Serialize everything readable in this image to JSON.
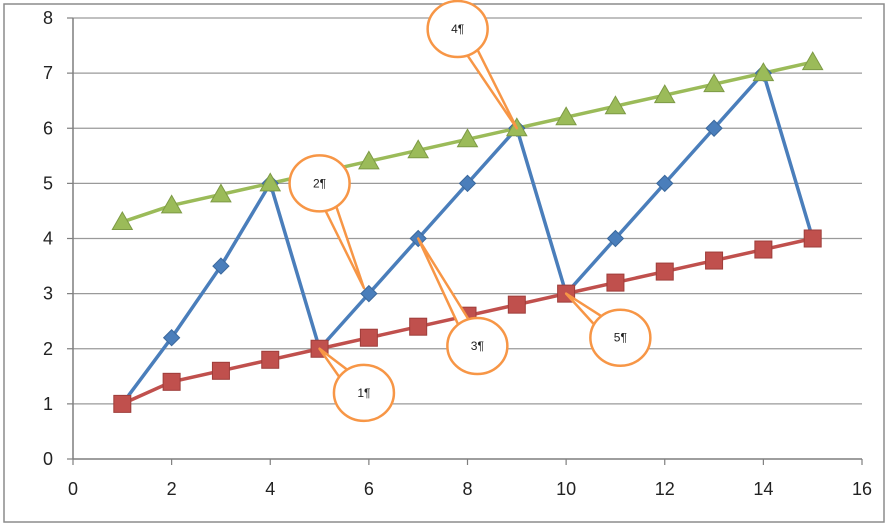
{
  "chart_data": {
    "type": "line",
    "title": "",
    "xlabel": "",
    "ylabel": "",
    "xlim": [
      0,
      16
    ],
    "ylim": [
      0,
      8
    ],
    "x_ticks": [
      0,
      2,
      4,
      6,
      8,
      10,
      12,
      14,
      16
    ],
    "y_ticks": [
      0,
      1,
      2,
      3,
      4,
      5,
      6,
      7,
      8
    ],
    "grid": "horizontal",
    "legend": "none",
    "series": [
      {
        "color": "#4a7ebb",
        "marker": "diamond",
        "x": [
          1,
          2,
          3,
          4,
          5,
          6,
          7,
          8,
          9,
          10,
          11,
          12,
          13,
          14,
          15
        ],
        "y": [
          1,
          2.2,
          3.5,
          5,
          2,
          3,
          4,
          5,
          6,
          3,
          4,
          5,
          6,
          7,
          4
        ]
      },
      {
        "color": "#c0504d",
        "marker": "square",
        "x": [
          1,
          2,
          3,
          4,
          5,
          6,
          7,
          8,
          9,
          10,
          11,
          12,
          13,
          14,
          15
        ],
        "y": [
          1,
          1.4,
          1.6,
          1.8,
          2,
          2.2,
          2.4,
          2.6,
          2.8,
          3,
          3.2,
          3.4,
          3.6,
          3.8,
          4
        ]
      },
      {
        "color": "#9bbb59",
        "marker": "triangle",
        "x": [
          1,
          2,
          3,
          4,
          5,
          6,
          7,
          8,
          9,
          10,
          11,
          12,
          13,
          14,
          15
        ],
        "y": [
          4.3,
          4.6,
          4.8,
          5,
          5.2,
          5.4,
          5.6,
          5.8,
          6,
          6.2,
          6.4,
          6.6,
          6.8,
          7,
          7.2
        ]
      }
    ],
    "annotations": [
      {
        "text": "1¶",
        "x": 5,
        "y": 2,
        "label_x": 5.9,
        "label_y": 1.2
      },
      {
        "text": "2¶",
        "x": 5.9,
        "y": 3.1,
        "label_x": 5,
        "label_y": 5
      },
      {
        "text": "3¶",
        "x": 7,
        "y": 4,
        "label_x": 8.2,
        "label_y": 2.05
      },
      {
        "text": "4¶",
        "x": 9,
        "y": 6,
        "label_x": 7.8,
        "label_y": 7.8
      },
      {
        "text": "5¶",
        "x": 10,
        "y": 3,
        "label_x": 11.1,
        "label_y": 2.2
      }
    ],
    "callout_color": "#f79646"
  }
}
